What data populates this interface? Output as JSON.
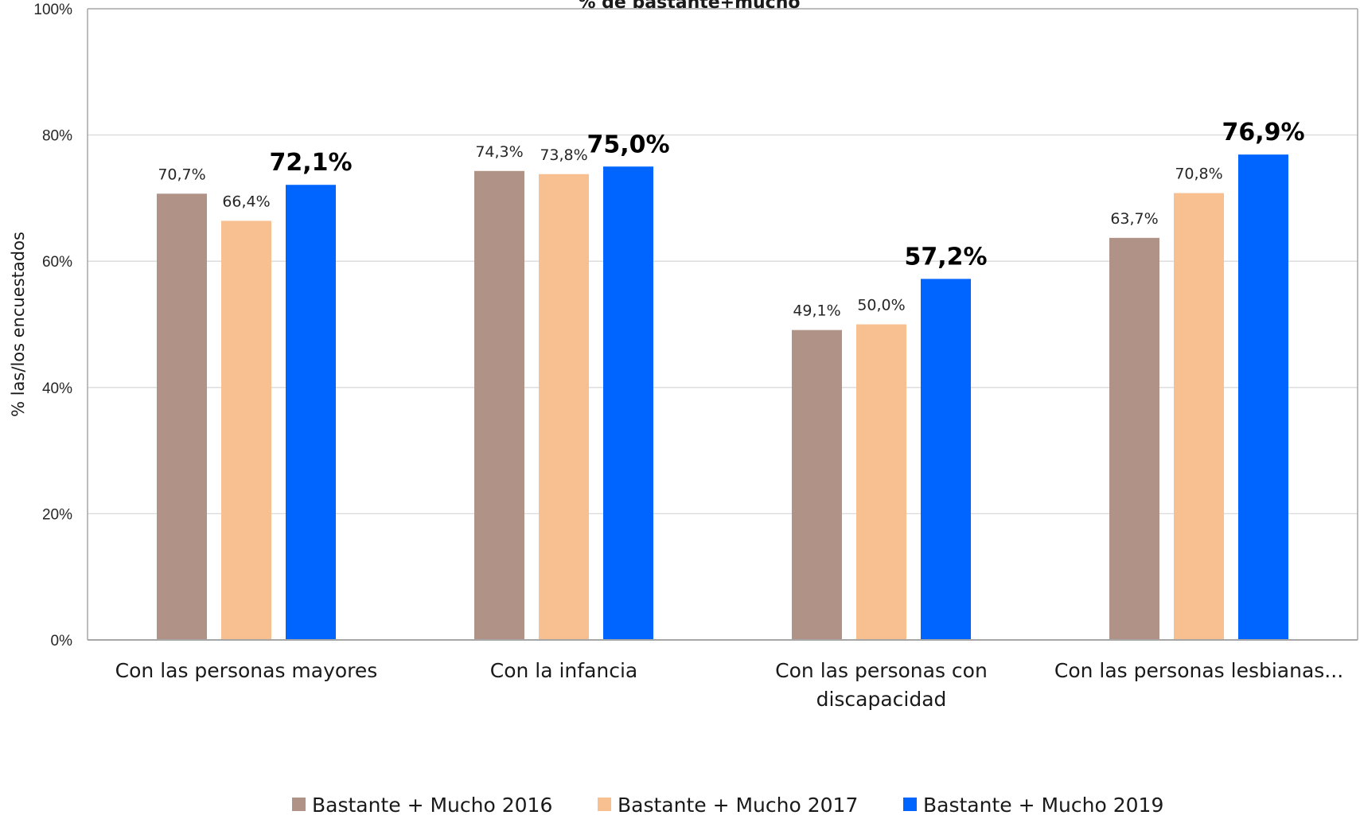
{
  "chart_data": {
    "type": "bar",
    "title": "% de bastante+mucho",
    "ylabel": "% las/los encuestados",
    "xlabel": "",
    "ylim": [
      0,
      100
    ],
    "yticks": [
      0,
      20,
      40,
      60,
      80,
      100
    ],
    "ytick_labels": [
      "0%",
      "20%",
      "40%",
      "60%",
      "80%",
      "100%"
    ],
    "grid": true,
    "legend_position": "bottom",
    "categories": [
      [
        "Con las personas mayores"
      ],
      [
        "Con la infancia"
      ],
      [
        "Con las personas con",
        "discapacidad"
      ],
      [
        "Con las personas lesbianas..."
      ]
    ],
    "series": [
      {
        "name": "Bastante + Mucho 2016",
        "color": "#b09287",
        "values": [
          70.7,
          74.3,
          49.1,
          63.7
        ],
        "labels": [
          "70,7%",
          "74,3%",
          "49,1%",
          "63,7%"
        ],
        "label_style": "normal"
      },
      {
        "name": "Bastante + Mucho 2017",
        "color": "#f8c090",
        "values": [
          66.4,
          73.8,
          50.0,
          70.8
        ],
        "labels": [
          "66,4%",
          "73,8%",
          "50,0%",
          "70,8%"
        ],
        "label_style": "normal"
      },
      {
        "name": "Bastante + Mucho 2019",
        "color": "#0064ff",
        "values": [
          72.1,
          75.0,
          57.2,
          76.9
        ],
        "labels": [
          "72,1%",
          "75,0%",
          "57,2%",
          "76,9%"
        ],
        "label_style": "bold"
      }
    ]
  }
}
